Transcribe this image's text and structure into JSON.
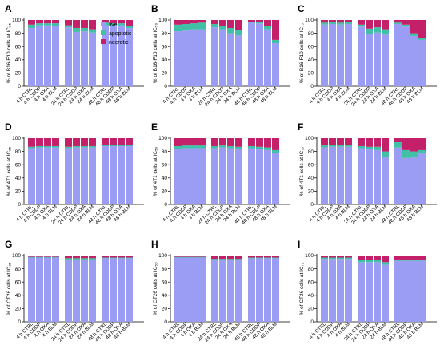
{
  "colors": {
    "live": "#9b9cf3",
    "apoptotic": "#40c0a4",
    "necrotic": "#c4206a"
  },
  "chart_data": [
    {
      "panel": "A",
      "type": "bar",
      "stacked": true,
      "ylabel": "% of B16-F10 cells at IC₂₅",
      "yticks": [
        "0",
        "20",
        "40",
        "60",
        "80",
        "100"
      ],
      "ylim": [
        0,
        100
      ],
      "legend": "top-right",
      "categories": [
        "4 h CTRL",
        "4 h CDDP",
        "4 h OXA",
        "4 h BLM",
        "24 h CTRL",
        "24 h CDDP",
        "24 h OXA",
        "24 h BLM",
        "48 h CTRL",
        "48 h CDDP",
        "48 h OXA",
        "48 h BLM"
      ],
      "series": [
        {
          "name": "live",
          "values": [
            88,
            92,
            92,
            91,
            89,
            82,
            83,
            81,
            92,
            92,
            92,
            88
          ]
        },
        {
          "name": "apoptotic",
          "values": [
            5,
            3,
            3,
            4,
            3,
            6,
            5,
            5,
            4,
            3,
            3,
            3
          ]
        },
        {
          "name": "necrotic",
          "values": [
            7,
            5,
            5,
            5,
            8,
            12,
            12,
            14,
            4,
            5,
            5,
            9
          ]
        }
      ]
    },
    {
      "panel": "B",
      "type": "bar",
      "stacked": true,
      "ylabel": "% of B16-F10 cells at IC₅₀",
      "yticks": [
        "0",
        "20",
        "40",
        "60",
        "80",
        "100"
      ],
      "ylim": [
        0,
        100
      ],
      "categories": [
        "4 h CTRL",
        "4 h CDDP",
        "4 h OXA",
        "4 h BLM",
        "24 h CTRL",
        "24 h CDDP",
        "24 h OXA",
        "24 h BLM",
        "48 h CTRL",
        "48 h CDDP",
        "48 h OXA",
        "48 h BLM"
      ],
      "series": [
        {
          "name": "live",
          "values": [
            83,
            84,
            86,
            86,
            89,
            86,
            80,
            77,
            96,
            95,
            86,
            65
          ]
        },
        {
          "name": "apoptotic",
          "values": [
            10,
            10,
            9,
            10,
            5,
            5,
            8,
            8,
            1,
            2,
            5,
            5
          ]
        },
        {
          "name": "necrotic",
          "values": [
            7,
            6,
            5,
            4,
            6,
            9,
            12,
            15,
            3,
            3,
            9,
            30
          ]
        }
      ]
    },
    {
      "panel": "C",
      "type": "bar",
      "stacked": true,
      "ylabel": "% of B16-F10 cells at IC₇₅",
      "yticks": [
        "0",
        "20",
        "40",
        "60",
        "80",
        "100"
      ],
      "ylim": [
        0,
        100
      ],
      "categories": [
        "4 h CTRL",
        "4 h CDDP",
        "4 h OXA",
        "4 h BLM",
        "24 h CTRL",
        "24 h CDDP",
        "24 h OXA",
        "24 h BLM",
        "48 h CTRL",
        "48 h CDDP",
        "48 h OXA",
        "48 h BLM"
      ],
      "series": [
        {
          "name": "live",
          "values": [
            93,
            94,
            93,
            94,
            90,
            79,
            81,
            78,
            94,
            90,
            76,
            70
          ]
        },
        {
          "name": "apoptotic",
          "values": [
            3,
            3,
            3,
            3,
            3,
            8,
            8,
            8,
            2,
            3,
            4,
            3
          ]
        },
        {
          "name": "necrotic",
          "values": [
            4,
            3,
            4,
            3,
            7,
            13,
            11,
            14,
            4,
            7,
            20,
            27
          ]
        }
      ]
    },
    {
      "panel": "D",
      "type": "bar",
      "stacked": true,
      "ylabel": "% of 4T1 cells at IC₂₅",
      "yticks": [
        "0",
        "20",
        "40",
        "60",
        "80",
        "100"
      ],
      "ylim": [
        0,
        100
      ],
      "categories": [
        "4 h CTRL",
        "4 h CDDP",
        "4 h OXA",
        "4 h BLM",
        "24 h CTRL",
        "24 h CDDP",
        "24 h OXA",
        "24 h BLM",
        "48 h CTRL",
        "48 h CDDP",
        "48 h OXA",
        "48 h BLM"
      ],
      "series": [
        {
          "name": "live",
          "values": [
            85,
            86,
            86,
            86,
            85,
            86,
            86,
            86,
            88,
            88,
            88,
            88
          ]
        },
        {
          "name": "apoptotic",
          "values": [
            2,
            2,
            2,
            2,
            2,
            2,
            2,
            2,
            2,
            2,
            2,
            2
          ]
        },
        {
          "name": "necrotic",
          "values": [
            13,
            12,
            12,
            12,
            13,
            12,
            12,
            12,
            10,
            10,
            10,
            10
          ]
        }
      ]
    },
    {
      "panel": "E",
      "type": "bar",
      "stacked": true,
      "ylabel": "% of 4T1 cells at IC₅₀",
      "yticks": [
        "0",
        "20",
        "40",
        "60",
        "80",
        "100"
      ],
      "ylim": [
        0,
        100
      ],
      "categories": [
        "4 h CTRL",
        "4 h CDDP",
        "4 h OXA",
        "4 h BLM",
        "24 h CTRL",
        "24 h CDDP",
        "24 h OXA",
        "24 h BLM",
        "48 h CTRL",
        "48 h CDDP",
        "48 h OXA",
        "48 h BLM"
      ],
      "series": [
        {
          "name": "live",
          "values": [
            84,
            85,
            85,
            85,
            85,
            86,
            85,
            84,
            85,
            84,
            82,
            78
          ]
        },
        {
          "name": "apoptotic",
          "values": [
            4,
            4,
            4,
            4,
            3,
            3,
            3,
            3,
            3,
            3,
            4,
            4
          ]
        },
        {
          "name": "necrotic",
          "values": [
            12,
            11,
            11,
            11,
            12,
            11,
            12,
            13,
            12,
            13,
            14,
            18
          ]
        }
      ]
    },
    {
      "panel": "F",
      "type": "bar",
      "stacked": true,
      "ylabel": "% of 4T1 cells at IC₇₅",
      "yticks": [
        "0",
        "20",
        "40",
        "60",
        "80",
        "100"
      ],
      "ylim": [
        0,
        100
      ],
      "categories": [
        "4 h CTRL",
        "4 h CDDP",
        "4 h OXA",
        "4 h BLM",
        "24 h CTRL",
        "24 h CDDP",
        "24 h OXA",
        "24 h BLM",
        "48 h CTRL",
        "48 h CDDP",
        "48 h OXA",
        "48 h BLM"
      ],
      "series": [
        {
          "name": "live",
          "values": [
            86,
            87,
            87,
            87,
            85,
            84,
            82,
            72,
            86,
            70,
            71,
            77
          ]
        },
        {
          "name": "apoptotic",
          "values": [
            3,
            3,
            3,
            3,
            3,
            3,
            5,
            8,
            8,
            12,
            9,
            5
          ]
        },
        {
          "name": "necrotic",
          "values": [
            11,
            10,
            10,
            10,
            12,
            13,
            13,
            20,
            6,
            18,
            20,
            18
          ]
        }
      ]
    },
    {
      "panel": "G",
      "type": "bar",
      "stacked": true,
      "ylabel": "% of CT26 cells at IC₂₅",
      "yticks": [
        "0",
        "20",
        "40",
        "60",
        "80",
        "100"
      ],
      "ylim": [
        0,
        100
      ],
      "categories": [
        "4 h CTRL",
        "4 h CDDP",
        "4 h OXA",
        "4 h BLM",
        "24 h CTRL",
        "24 h CDDP",
        "24 h OXA",
        "24 h BLM",
        "48 h CTRL",
        "48 h CDDP",
        "48 h OXA",
        "48 h BLM"
      ],
      "series": [
        {
          "name": "live",
          "values": [
            97,
            97,
            97,
            97,
            94,
            94,
            94,
            94,
            96,
            96,
            96,
            96
          ]
        },
        {
          "name": "apoptotic",
          "values": [
            1,
            1,
            1,
            1,
            2,
            2,
            2,
            2,
            1,
            1,
            1,
            1
          ]
        },
        {
          "name": "necrotic",
          "values": [
            2,
            2,
            2,
            2,
            4,
            4,
            4,
            4,
            3,
            3,
            3,
            3
          ]
        }
      ]
    },
    {
      "panel": "H",
      "type": "bar",
      "stacked": true,
      "ylabel": "% of CT26 cells at IC₅₀",
      "yticks": [
        "0",
        "20",
        "40",
        "60",
        "80",
        "100"
      ],
      "ylim": [
        0,
        100
      ],
      "categories": [
        "4 h CTRL",
        "4 h CDDP",
        "4 h OXA",
        "4 h BLM",
        "24 h CTRL",
        "24 h CDDP",
        "24 h OXA",
        "24 h BLM",
        "48 h CTRL",
        "48 h CDDP",
        "48 h OXA",
        "48 h BLM"
      ],
      "series": [
        {
          "name": "live",
          "values": [
            97,
            97,
            97,
            97,
            93,
            93,
            93,
            93,
            96,
            96,
            96,
            96
          ]
        },
        {
          "name": "apoptotic",
          "values": [
            1,
            1,
            1,
            1,
            2,
            2,
            2,
            2,
            1,
            1,
            1,
            1
          ]
        },
        {
          "name": "necrotic",
          "values": [
            2,
            2,
            2,
            2,
            5,
            5,
            5,
            5,
            3,
            3,
            3,
            3
          ]
        }
      ]
    },
    {
      "panel": "I",
      "type": "bar",
      "stacked": true,
      "ylabel": "% of CT26 cells at IC₇₅",
      "yticks": [
        "0",
        "20",
        "40",
        "60",
        "80",
        "100"
      ],
      "ylim": [
        0,
        100
      ],
      "categories": [
        "4 h CTRL",
        "4 h CDDP",
        "4 h OXA",
        "4 h BLM",
        "24 h CTRL",
        "24 h CDDP",
        "24 h OXA",
        "24 h BLM",
        "48 h CTRL",
        "48 h CDDP",
        "48 h OXA",
        "48 h BLM"
      ],
      "series": [
        {
          "name": "live",
          "values": [
            95,
            95,
            95,
            95,
            90,
            90,
            90,
            86,
            92,
            92,
            92,
            92
          ]
        },
        {
          "name": "apoptotic",
          "values": [
            2,
            2,
            2,
            2,
            3,
            3,
            3,
            4,
            2,
            2,
            2,
            2
          ]
        },
        {
          "name": "necrotic",
          "values": [
            3,
            3,
            3,
            3,
            7,
            7,
            7,
            10,
            6,
            6,
            6,
            6
          ]
        }
      ]
    }
  ]
}
